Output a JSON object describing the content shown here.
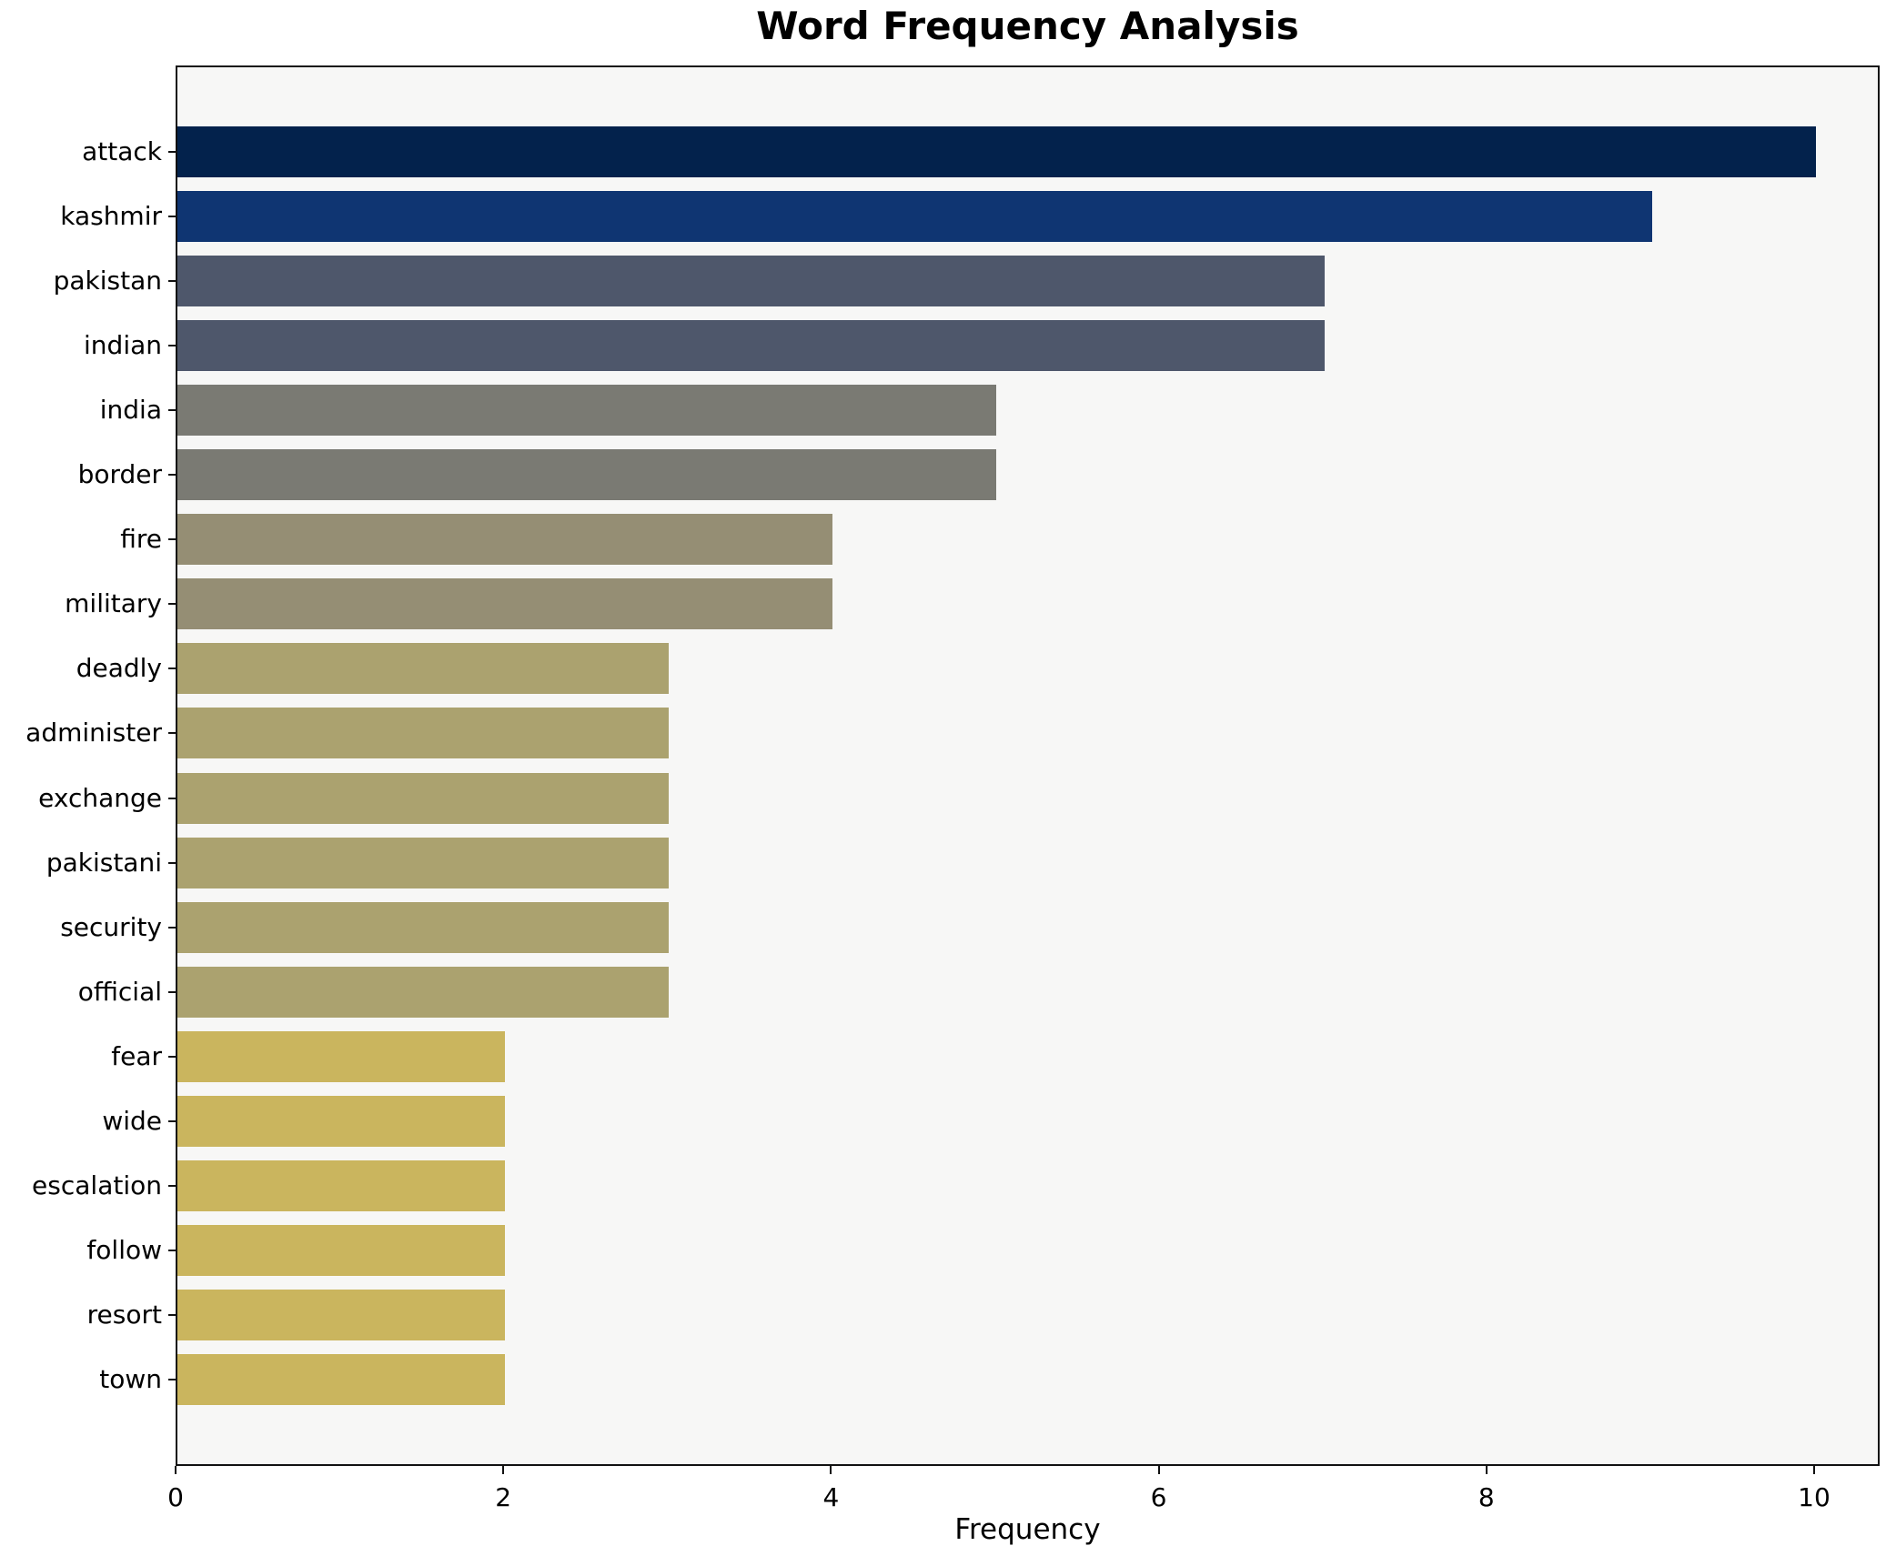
{
  "figure": {
    "title": "Word Frequency Analysis",
    "background": "#ffffff"
  },
  "chart_data": {
    "type": "bar",
    "orientation": "horizontal",
    "title": "Word Frequency Analysis",
    "xlabel": "Frequency",
    "ylabel": "",
    "categories": [
      "attack",
      "kashmir",
      "pakistan",
      "indian",
      "india",
      "border",
      "fire",
      "military",
      "deadly",
      "administer",
      "exchange",
      "pakistani",
      "security",
      "official",
      "fear",
      "wide",
      "escalation",
      "follow",
      "resort",
      "town"
    ],
    "values": [
      10,
      9,
      7,
      7,
      5,
      5,
      4,
      4,
      3,
      3,
      3,
      3,
      3,
      3,
      2,
      2,
      2,
      2,
      2,
      2
    ],
    "bar_colors": [
      "#03224c",
      "#0f3572",
      "#4e576b",
      "#4e576b",
      "#7a7a73",
      "#7a7a73",
      "#958e74",
      "#958e74",
      "#aba26f",
      "#aba26f",
      "#aba26f",
      "#aba26f",
      "#aba26f",
      "#aba26f",
      "#cab55e",
      "#cab55e",
      "#cab55e",
      "#cab55e",
      "#cab55e",
      "#cab55e"
    ],
    "x_ticks": [
      0,
      2,
      4,
      6,
      8,
      10
    ],
    "xlim": [
      0,
      10.4
    ],
    "grid": false,
    "legend": "none",
    "plot_background": "#f7f7f6",
    "spine_color": "#111111"
  }
}
